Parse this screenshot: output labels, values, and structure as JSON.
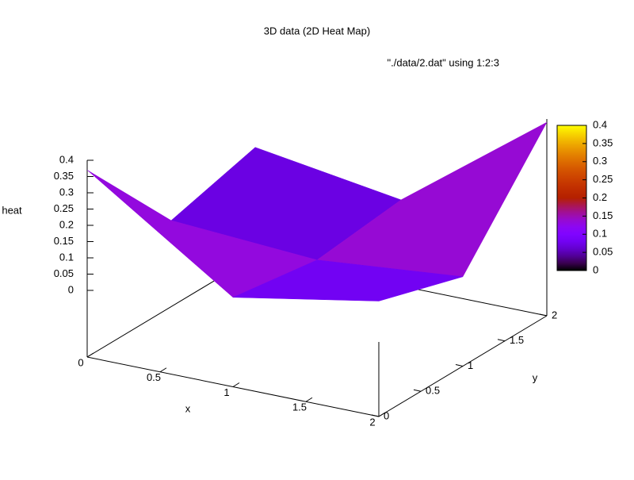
{
  "chart_data": {
    "type": "surface",
    "title": "3D data (2D Heat Map)",
    "key": "\"./data/2.dat\" using 1:2:3",
    "xlabel": "x",
    "ylabel": "y",
    "zlabel": "heat",
    "x": [
      0,
      1,
      2
    ],
    "y": [
      0,
      1,
      2
    ],
    "z": [
      [
        0.37,
        0.07,
        0.15
      ],
      [
        0.06,
        0.03,
        0.07
      ],
      [
        0.13,
        0.06,
        0.39
      ]
    ],
    "xlim": [
      0,
      2
    ],
    "ylim": [
      0,
      2
    ],
    "zlim": [
      0,
      0.4
    ],
    "xticks": [
      0,
      0.5,
      1,
      1.5,
      2
    ],
    "yticks": [
      0,
      0.5,
      1,
      1.5,
      2
    ],
    "zticks": [
      0,
      0.05,
      0.1,
      0.15,
      0.2,
      0.25,
      0.3,
      0.35,
      0.4
    ],
    "cblim": [
      0,
      0.4
    ],
    "cbticks": [
      0,
      0.05,
      0.1,
      0.15,
      0.2,
      0.25,
      0.3,
      0.35,
      0.4
    ]
  }
}
